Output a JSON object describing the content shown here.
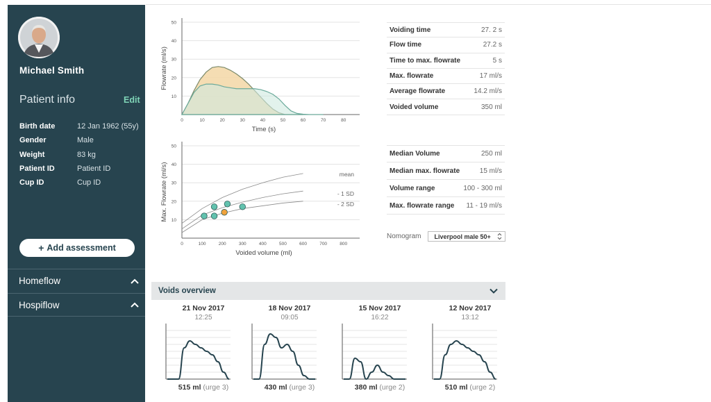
{
  "patient": {
    "name": "Michael Smith",
    "info_title": "Patient info",
    "edit_label": "Edit",
    "fields": [
      {
        "label": "Birth date",
        "value": "12 Jan 1962 (55y)"
      },
      {
        "label": "Gender",
        "value": "Male"
      },
      {
        "label": "Weight",
        "value": "83 kg"
      },
      {
        "label": "Patient ID",
        "value": "Patient ID"
      },
      {
        "label": "Cup ID",
        "value": "Cup ID"
      }
    ],
    "add_assessment_label": "Add assessment"
  },
  "sidebar_sections": [
    {
      "label": "Homeflow"
    },
    {
      "label": "Hospiflow"
    }
  ],
  "colors": {
    "sidebar_bg": "#27444f",
    "accent_green": "#7fd4b7",
    "flow_orange": "#f3d7a6",
    "flow_green": "#cfe9e0",
    "dot_teal": "#62c2ae",
    "dot_orange": "#f0a23c"
  },
  "void_stats": [
    {
      "label": "Voiding time",
      "value": "27. 2 s"
    },
    {
      "label": "Flow time",
      "value": "27.2 s"
    },
    {
      "label": "Time to max. flowrate",
      "value": "5 s"
    },
    {
      "label": "Max. flowrate",
      "value": "17 ml/s"
    },
    {
      "label": "Average flowrate",
      "value": "14.2 ml/s"
    },
    {
      "label": "Voided volume",
      "value": "350 ml"
    }
  ],
  "summary_stats": [
    {
      "label": "Median Volume",
      "value": "250 ml"
    },
    {
      "label": "Median max. flowrate",
      "value": "15 ml/s"
    },
    {
      "label": "Volume range",
      "value": "100 - 300 ml"
    },
    {
      "label": "Max. flowrate range",
      "value": "11 - 19 ml/s"
    }
  ],
  "nomogram": {
    "label": "Nomogram",
    "selected": "Liverpool male 50+"
  },
  "voids_overview": {
    "title": "Voids overview",
    "items": [
      {
        "date": "21 Nov 2017",
        "time": "12:25",
        "volume": "515 ml",
        "urge": "(urge 3)",
        "curve": [
          0,
          0,
          0,
          9,
          11,
          10,
          9,
          8,
          7,
          5,
          2,
          0
        ]
      },
      {
        "date": "18 Nov 2017",
        "time": "09:05",
        "volume": "430 ml",
        "urge": "(urge 3)",
        "curve": [
          0,
          0,
          10,
          13,
          12,
          9,
          10,
          8,
          4,
          1,
          0,
          0
        ]
      },
      {
        "date": "15 Nov 2017",
        "time": "16:22",
        "volume": "380 ml",
        "urge": "(urge 2)",
        "curve": [
          0,
          0,
          6,
          5,
          0,
          2,
          4,
          2,
          1,
          0,
          0,
          0
        ]
      },
      {
        "date": "12 Nov 2017",
        "time": "13:12",
        "volume": "510 ml",
        "urge": "(urge 2)",
        "curve": [
          0,
          0,
          7,
          10,
          11,
          10,
          9,
          8,
          7,
          5,
          2,
          0
        ]
      }
    ]
  },
  "chart_data": [
    {
      "type": "area",
      "title": "",
      "xlabel": "Time (s)",
      "ylabel": "Flowrate (ml/s)",
      "xlim": [
        0,
        88
      ],
      "ylim": [
        0,
        50
      ],
      "xticks": [
        0,
        10,
        20,
        30,
        40,
        50,
        60,
        70,
        80
      ],
      "yticks": [
        10,
        20,
        30,
        40,
        50
      ],
      "series": [
        {
          "name": "orange",
          "x": [
            0,
            3,
            6,
            9,
            12,
            15,
            18,
            21,
            24,
            27,
            30,
            33,
            36,
            39,
            42,
            45,
            48,
            51,
            54,
            57,
            60
          ],
          "y": [
            0,
            6,
            13,
            19,
            23,
            25.5,
            26,
            25.5,
            24,
            22,
            19.5,
            16.5,
            13,
            9.5,
            6,
            3,
            1,
            0,
            0,
            0,
            0
          ]
        },
        {
          "name": "green",
          "x": [
            0,
            3,
            6,
            9,
            12,
            15,
            18,
            21,
            24,
            27,
            30,
            33,
            36,
            39,
            42,
            45,
            48,
            51,
            54,
            57,
            60,
            63,
            66,
            70
          ],
          "y": [
            0,
            6,
            12,
            15.5,
            16.5,
            16.5,
            16,
            15,
            14.5,
            14,
            14,
            14,
            14,
            13.5,
            12.5,
            11,
            8.5,
            5,
            2,
            0.6,
            0.2,
            0,
            0,
            0
          ]
        }
      ]
    },
    {
      "type": "scatter",
      "title": "",
      "xlabel": "Voided volume (ml)",
      "ylabel": "Max. Flowrate (ml/s)",
      "xlim": [
        0,
        880
      ],
      "ylim": [
        0,
        50
      ],
      "xticks": [
        0,
        100,
        200,
        300,
        400,
        500,
        600,
        700,
        800
      ],
      "yticks": [
        10,
        20,
        30,
        40,
        50
      ],
      "curve_labels": [
        "mean",
        "- 1 SD",
        "- 2 SD"
      ],
      "curves": [
        {
          "name": "mean",
          "x": [
            0,
            100,
            200,
            300,
            400,
            500,
            600
          ],
          "y": [
            8,
            16,
            22,
            26.5,
            30,
            33,
            35
          ]
        },
        {
          "name": "- 1 SD",
          "x": [
            0,
            100,
            200,
            300,
            400,
            500,
            600
          ],
          "y": [
            5,
            12.5,
            16.5,
            19.5,
            22,
            24,
            25.5
          ]
        },
        {
          "name": "- 2 SD",
          "x": [
            0,
            100,
            200,
            300,
            400,
            500,
            600
          ],
          "y": [
            3,
            10,
            13.5,
            16,
            17.5,
            19,
            20
          ]
        }
      ],
      "points": [
        {
          "x": 110,
          "y": 12,
          "highlight": false
        },
        {
          "x": 160,
          "y": 17,
          "highlight": false
        },
        {
          "x": 160,
          "y": 12,
          "highlight": false
        },
        {
          "x": 225,
          "y": 18.5,
          "highlight": false
        },
        {
          "x": 300,
          "y": 17,
          "highlight": false
        },
        {
          "x": 210,
          "y": 14,
          "highlight": true
        }
      ]
    }
  ]
}
